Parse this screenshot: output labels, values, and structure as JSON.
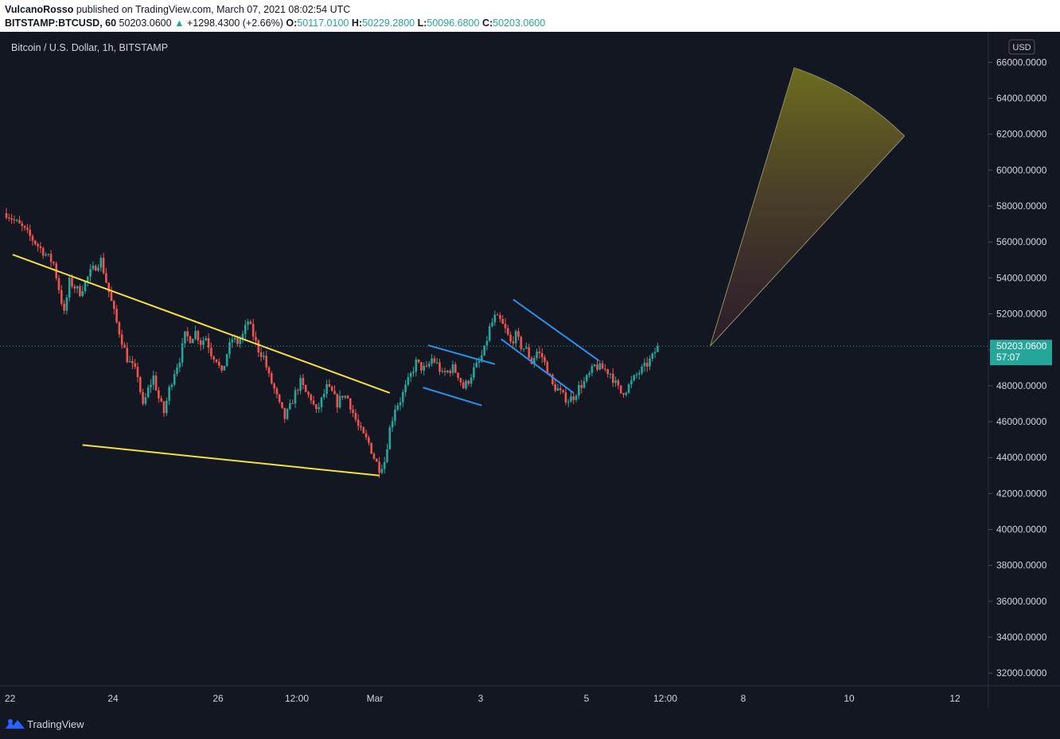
{
  "header": {
    "author": "VulcanoRosso",
    "published_text": " published on TradingView.com, March 07, 2021 08:02:54 UTC",
    "symbol": "BITSTAMP:BTCUSD, 60",
    "last": "50203.0600",
    "change": "+1298.4300 (+2.66%)",
    "o_label": "O:",
    "o_value": "50117.0100",
    "h_label": "H:",
    "h_value": "50229.2800",
    "l_label": "L:",
    "l_value": "50096.6800",
    "c_label": "C:",
    "c_value": "50203.0600"
  },
  "footer": {
    "brand": "TradingView"
  },
  "chart_data": {
    "type": "candlestick",
    "title": "Bitcoin / U.S. Dollar, 1h, BITSTAMP",
    "currency": "USD",
    "price_label": "50203.0600",
    "countdown": "57:07",
    "y_ticks": [
      "66000.0000",
      "64000.0000",
      "62000.0000",
      "60000.0000",
      "58000.0000",
      "56000.0000",
      "54000.0000",
      "52000.0000",
      "50000.0000",
      "48000.0000",
      "46000.0000",
      "44000.0000",
      "42000.0000",
      "40000.0000",
      "38000.0000",
      "36000.0000",
      "34000.0000",
      "32000.0000"
    ],
    "x_ticks": [
      "22",
      "24",
      "26",
      "12:00",
      "Mar",
      "3",
      "5",
      "12:00",
      "8",
      "10",
      "12"
    ],
    "ylim": [
      31300,
      67700
    ],
    "colors": {
      "up": "#26a69a",
      "down": "#ef5350",
      "wedge": "#f5e03d",
      "channel": "#2d8fe8",
      "background": "#131722"
    },
    "price_path": [
      [
        0,
        57600
      ],
      [
        3,
        56800
      ],
      [
        6,
        55800
      ],
      [
        9,
        54800
      ],
      [
        11,
        52000
      ],
      [
        12,
        53800
      ],
      [
        14,
        53200
      ],
      [
        16,
        54300
      ],
      [
        18,
        55000
      ],
      [
        19,
        53800
      ],
      [
        21,
        51500
      ],
      [
        23,
        49500
      ],
      [
        25,
        48600
      ],
      [
        26,
        46800
      ],
      [
        27,
        47800
      ],
      [
        28,
        48500
      ],
      [
        29,
        47300
      ],
      [
        30,
        46500
      ],
      [
        31,
        47800
      ],
      [
        32,
        48800
      ],
      [
        33,
        49500
      ],
      [
        34,
        50800
      ],
      [
        35,
        50600
      ],
      [
        36,
        51000
      ],
      [
        37,
        50400
      ],
      [
        38,
        50700
      ],
      [
        39,
        49800
      ],
      [
        40,
        49500
      ],
      [
        41,
        48600
      ],
      [
        42,
        49800
      ],
      [
        43,
        50600
      ],
      [
        44,
        50400
      ],
      [
        45,
        50800
      ],
      [
        46,
        51600
      ],
      [
        47,
        50800
      ],
      [
        48,
        50000
      ],
      [
        49,
        49600
      ],
      [
        50,
        48500
      ],
      [
        51,
        47800
      ],
      [
        52,
        46900
      ],
      [
        53,
        46200
      ],
      [
        54,
        46800
      ],
      [
        55,
        47600
      ],
      [
        56,
        48200
      ],
      [
        57,
        47600
      ],
      [
        58,
        47300
      ],
      [
        59,
        46500
      ],
      [
        60,
        47200
      ],
      [
        61,
        47900
      ],
      [
        62,
        47600
      ],
      [
        63,
        47000
      ],
      [
        64,
        47500
      ],
      [
        65,
        47300
      ],
      [
        66,
        46500
      ],
      [
        67,
        45700
      ],
      [
        68,
        45200
      ],
      [
        69,
        44800
      ],
      [
        70,
        44000
      ],
      [
        71,
        43400
      ],
      [
        72,
        43800
      ],
      [
        73,
        45600
      ],
      [
        74,
        46800
      ],
      [
        75,
        47200
      ],
      [
        76,
        47900
      ],
      [
        77,
        48600
      ],
      [
        78,
        49300
      ],
      [
        79,
        49000
      ],
      [
        80,
        48900
      ],
      [
        81,
        49500
      ],
      [
        82,
        49200
      ],
      [
        83,
        48600
      ],
      [
        84,
        48800
      ],
      [
        85,
        49000
      ],
      [
        86,
        48600
      ],
      [
        87,
        47900
      ],
      [
        88,
        48300
      ],
      [
        89,
        48900
      ],
      [
        90,
        49300
      ],
      [
        91,
        50000
      ],
      [
        92,
        51200
      ],
      [
        93,
        51800
      ],
      [
        94,
        51600
      ],
      [
        95,
        51100
      ],
      [
        96,
        50400
      ],
      [
        97,
        50800
      ],
      [
        98,
        50200
      ],
      [
        99,
        50000
      ],
      [
        100,
        49300
      ],
      [
        101,
        49900
      ],
      [
        102,
        49600
      ],
      [
        103,
        48900
      ],
      [
        104,
        48000
      ],
      [
        105,
        47800
      ],
      [
        106,
        47400
      ],
      [
        107,
        47200
      ],
      [
        108,
        47400
      ],
      [
        109,
        47900
      ],
      [
        110,
        48200
      ],
      [
        111,
        48600
      ],
      [
        112,
        49100
      ],
      [
        113,
        49000
      ],
      [
        114,
        48900
      ],
      [
        115,
        48700
      ],
      [
        116,
        48100
      ],
      [
        117,
        47600
      ],
      [
        118,
        47800
      ],
      [
        119,
        48200
      ],
      [
        120,
        48600
      ],
      [
        121,
        48900
      ],
      [
        122,
        49200
      ],
      [
        123,
        49600
      ],
      [
        124,
        50203
      ]
    ],
    "drawings": {
      "wedge_upper": [
        [
          1.2,
          55300
        ],
        [
          73,
          47600
        ]
      ],
      "wedge_lower": [
        [
          14.5,
          44700
        ],
        [
          71,
          43000
        ]
      ],
      "flag_upper": [
        [
          80.3,
          50250
        ],
        [
          93,
          49200
        ]
      ],
      "flag_lower": [
        [
          79.3,
          47900
        ],
        [
          90.5,
          46900
        ]
      ],
      "channel_upper": [
        [
          96.5,
          52800
        ],
        [
          112.8,
          49400
        ]
      ],
      "channel_lower": [
        [
          94.2,
          50600
        ],
        [
          108,
          47600
        ]
      ],
      "projection_fan": [
        [
          134,
          50203
        ],
        [
          150,
          65700
        ],
        [
          171,
          61900
        ]
      ]
    }
  }
}
